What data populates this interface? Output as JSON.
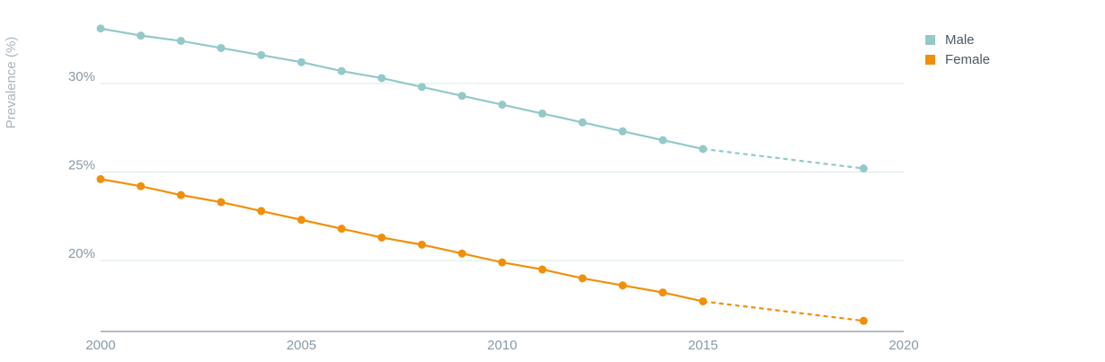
{
  "chart_data": {
    "type": "line",
    "title": "",
    "xlabel": "",
    "ylabel": "Prevalence (%)",
    "xlim": [
      2000,
      2020
    ],
    "ylim": [
      16,
      34
    ],
    "x_ticks": [
      {
        "value": 2000,
        "label": "2000"
      },
      {
        "value": 2005,
        "label": "2005"
      },
      {
        "value": 2010,
        "label": "2010"
      },
      {
        "value": 2015,
        "label": "2015"
      },
      {
        "value": 2020,
        "label": "2020"
      }
    ],
    "y_ticks": [
      {
        "value": 20,
        "label": "20%"
      },
      {
        "value": 25,
        "label": "25%"
      },
      {
        "value": 30,
        "label": "30%"
      }
    ],
    "grid": true,
    "legend_position": "top-right",
    "series": [
      {
        "name": "Male",
        "color": "#93c9c9",
        "x": [
          2000,
          2001,
          2002,
          2003,
          2004,
          2005,
          2006,
          2007,
          2008,
          2009,
          2010,
          2011,
          2012,
          2013,
          2014,
          2015,
          2019
        ],
        "values": [
          33.1,
          32.7,
          32.4,
          32.0,
          31.6,
          31.2,
          30.7,
          30.3,
          29.8,
          29.3,
          28.8,
          28.3,
          27.8,
          27.3,
          26.8,
          26.3,
          25.2
        ],
        "projected_from_index": 15
      },
      {
        "name": "Female",
        "color": "#f0900a",
        "x": [
          2000,
          2001,
          2002,
          2003,
          2004,
          2005,
          2006,
          2007,
          2008,
          2009,
          2010,
          2011,
          2012,
          2013,
          2014,
          2015,
          2019
        ],
        "values": [
          24.6,
          24.2,
          23.7,
          23.3,
          22.8,
          22.3,
          21.8,
          21.3,
          20.9,
          20.4,
          19.9,
          19.5,
          19.0,
          18.6,
          18.2,
          17.7,
          16.6
        ],
        "projected_from_index": 15
      }
    ]
  },
  "colors": {
    "grid": "#d9ebe8",
    "axis": "#9aa4ad"
  }
}
